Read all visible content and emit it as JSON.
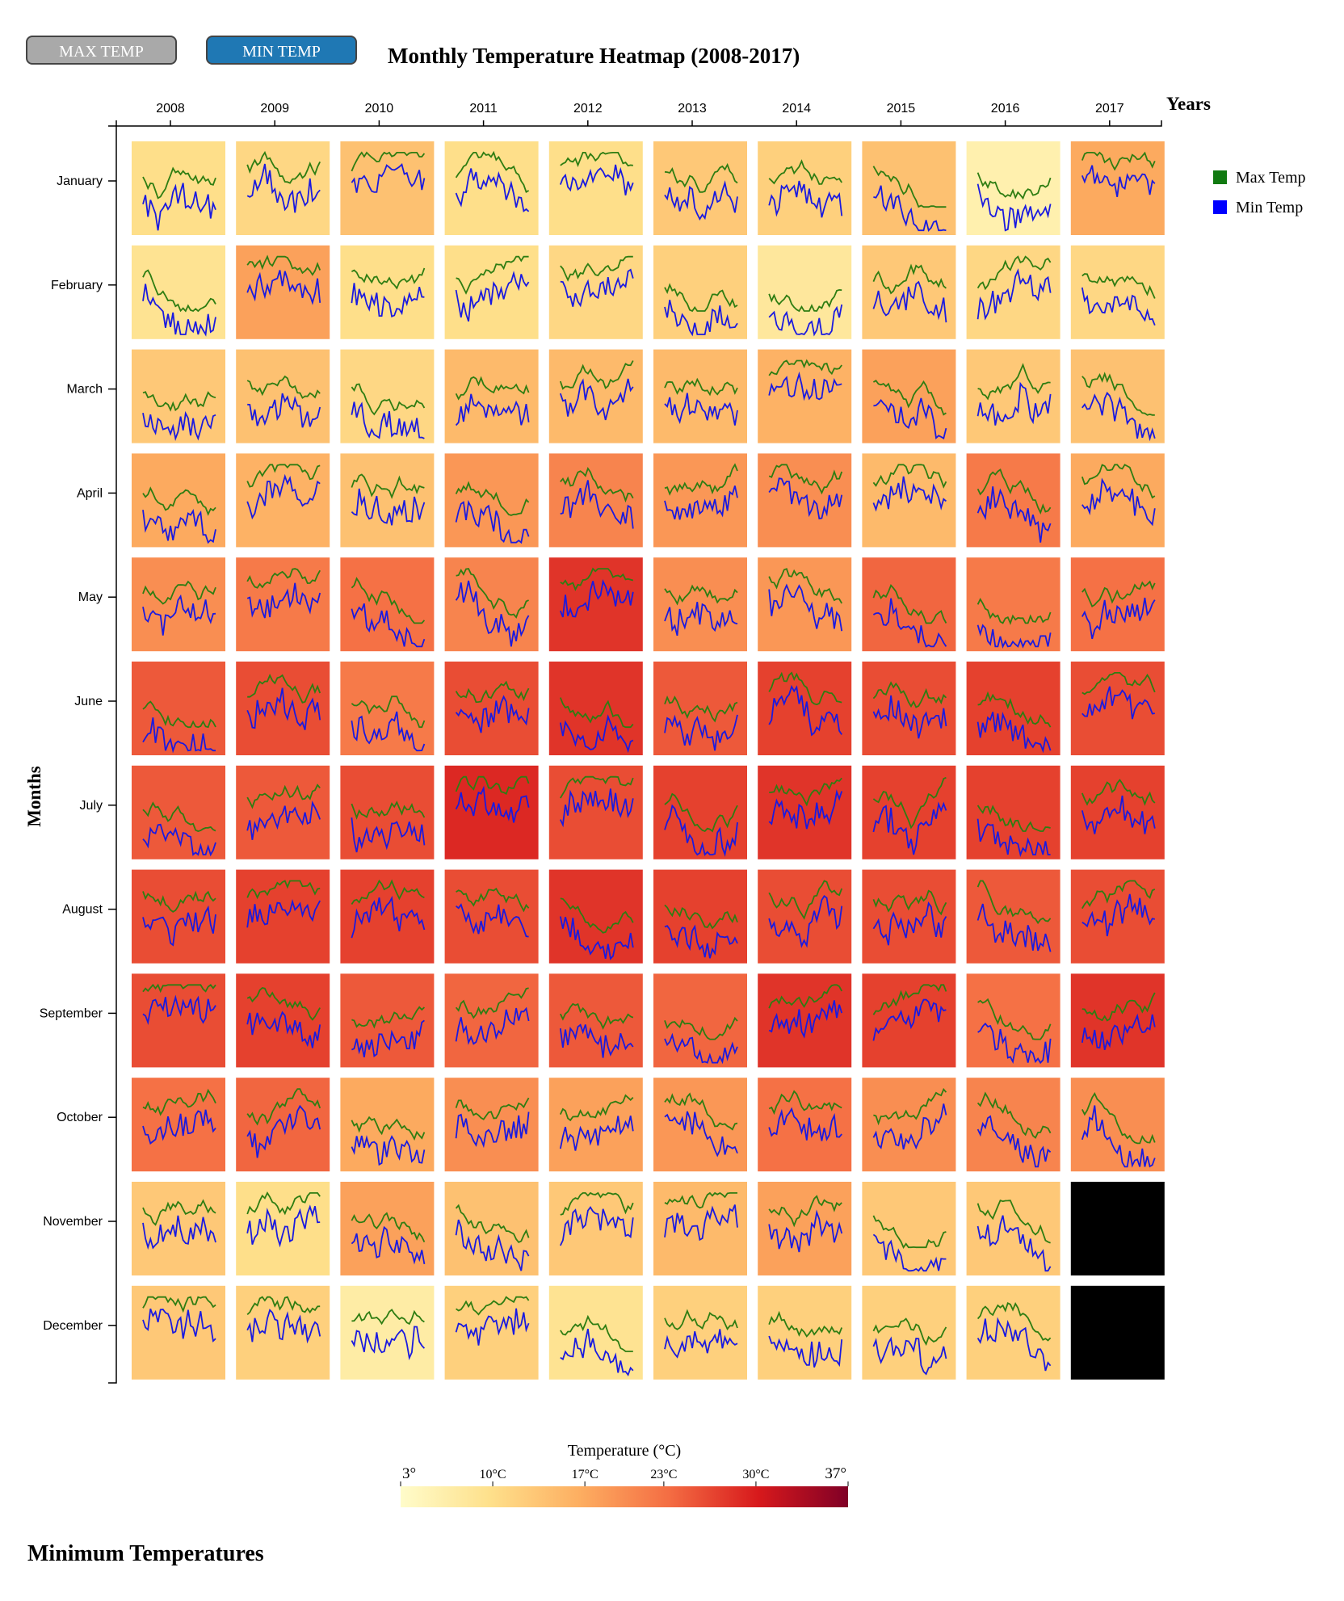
{
  "buttons": {
    "max_label": "MAX TEMP",
    "min_label": "MIN TEMP"
  },
  "title": "Monthly Temperature Heatmap (2008-2017)",
  "section_title": "Minimum Temperatures",
  "colors": {
    "max_line": "#2e7d12",
    "min_line": "#1a1ae0",
    "missing": "#000000",
    "legend_max": "#117a11",
    "legend_min": "#0000ff"
  },
  "chart_data": {
    "type": "heatmap",
    "xlabel": "Years",
    "ylabel": "Months",
    "years": [
      "2008",
      "2009",
      "2010",
      "2011",
      "2012",
      "2013",
      "2014",
      "2015",
      "2016",
      "2017"
    ],
    "months": [
      "January",
      "February",
      "March",
      "April",
      "May",
      "June",
      "July",
      "August",
      "September",
      "October",
      "November",
      "December"
    ],
    "legend": [
      "Max Temp",
      "Min Temp"
    ],
    "color_scale": {
      "title": "Temperature (°C)",
      "min": 3,
      "max": 37,
      "ticks": [
        {
          "value": 3,
          "label": "3°"
        },
        {
          "value": 10,
          "label": "10°C"
        },
        {
          "value": 17,
          "label": "17°C"
        },
        {
          "value": 23,
          "label": "23°C"
        },
        {
          "value": 30,
          "label": "30°C"
        },
        {
          "value": 37,
          "label": "37°"
        }
      ]
    },
    "cell_values": [
      [
        10,
        11,
        14,
        10,
        10,
        13,
        12,
        14,
        6,
        17
      ],
      [
        9,
        18,
        10,
        10,
        11,
        12,
        8,
        13,
        11,
        11
      ],
      [
        13,
        14,
        11,
        15,
        15,
        15,
        16,
        18,
        13,
        14
      ],
      [
        17,
        16,
        14,
        19,
        21,
        19,
        20,
        15,
        22,
        17
      ],
      [
        20,
        22,
        23,
        21,
        28,
        20,
        19,
        24,
        22,
        23
      ],
      [
        25,
        26,
        22,
        26,
        28,
        25,
        27,
        26,
        27,
        26
      ],
      [
        25,
        25,
        26,
        29,
        26,
        27,
        28,
        27,
        27,
        27
      ],
      [
        26,
        27,
        27,
        26,
        28,
        27,
        26,
        26,
        25,
        26
      ],
      [
        26,
        27,
        25,
        24,
        25,
        24,
        28,
        27,
        23,
        28
      ],
      [
        23,
        24,
        17,
        20,
        18,
        19,
        23,
        20,
        21,
        20
      ],
      [
        13,
        10,
        18,
        14,
        13,
        15,
        18,
        13,
        13,
        null
      ],
      [
        13,
        12,
        7,
        12,
        9,
        12,
        12,
        12,
        12,
        null
      ]
    ]
  }
}
